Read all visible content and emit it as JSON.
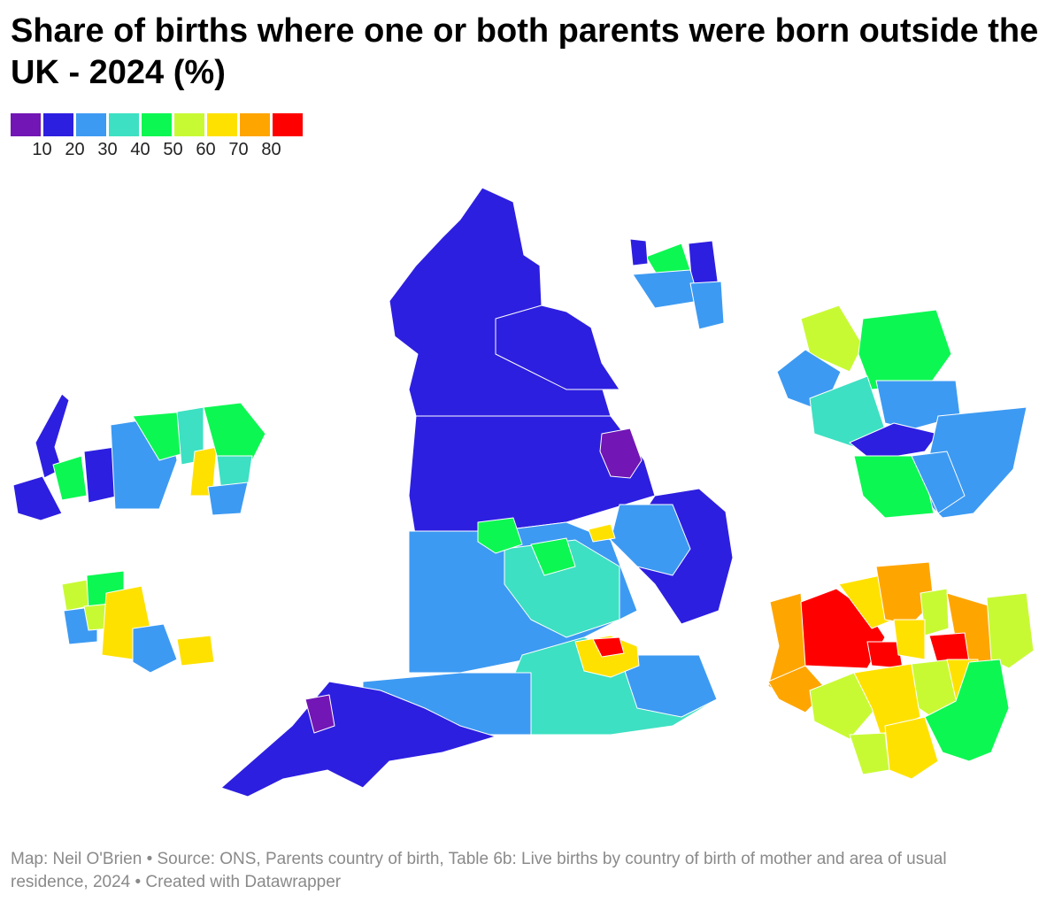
{
  "title": "Share of births where one or both parents were born outside the UK - 2024 (%)",
  "legend": {
    "colors": [
      "#7216b5",
      "#2d1fe0",
      "#3d9af2",
      "#3de0c2",
      "#0df752",
      "#c8fa34",
      "#ffe100",
      "#ffa500",
      "#ff0000"
    ],
    "ticks": [
      "10",
      "20",
      "30",
      "40",
      "50",
      "60",
      "70",
      "80"
    ]
  },
  "footer": "Map: Neil O'Brien • Source: ONS, Parents country of birth, Table 6b: Live births by country of birth of mother and area of usual residence, 2024 • Created with Datawrapper",
  "map_regions": [
    {
      "id": "england-main",
      "color_band": "20-30"
    },
    {
      "id": "inset-north-west",
      "color_band": "30-40"
    },
    {
      "id": "inset-west-midlands",
      "color_band": "50-60"
    },
    {
      "id": "inset-tyneside",
      "color_band": "20-30"
    },
    {
      "id": "inset-west-yorkshire",
      "color_band": "30-40"
    },
    {
      "id": "inset-london",
      "color_band": "70-80"
    }
  ]
}
